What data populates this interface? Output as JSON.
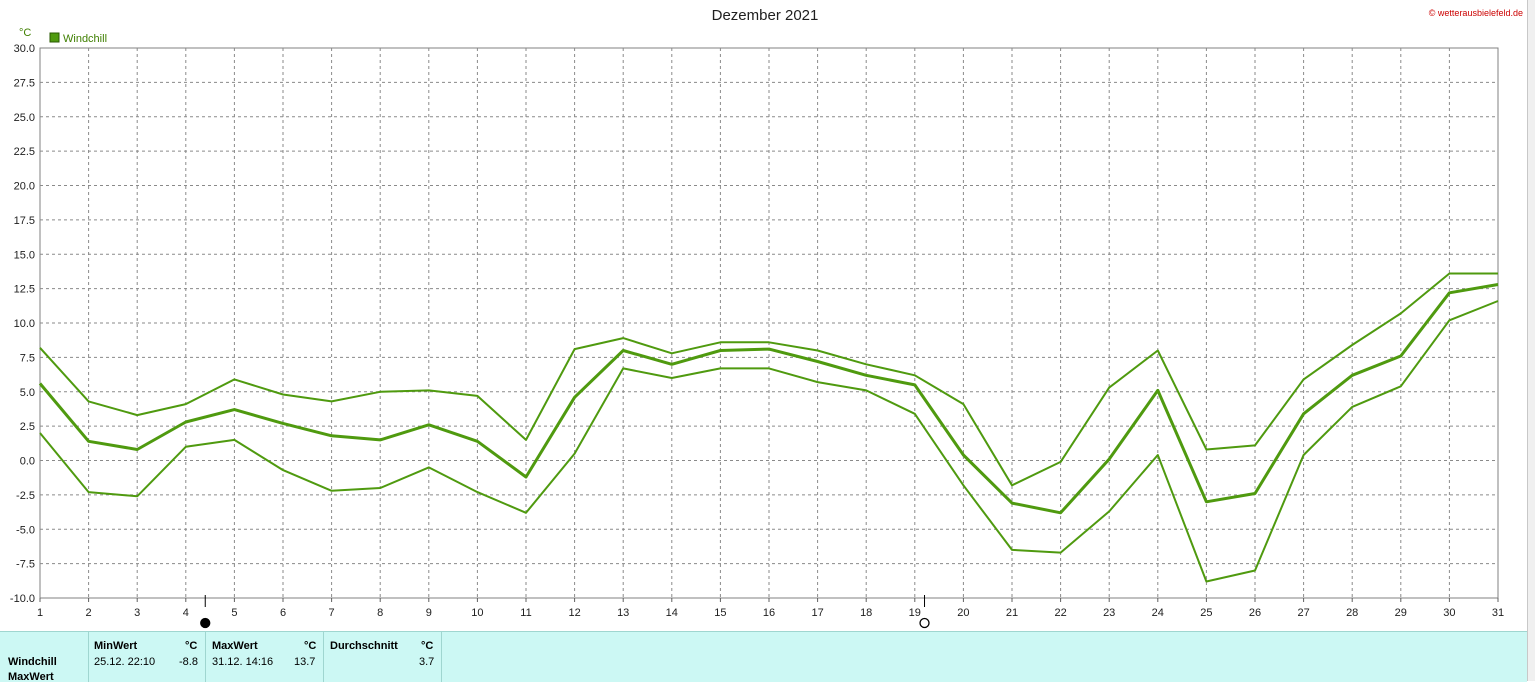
{
  "chart_data": {
    "type": "line",
    "title": "Dezember 2021",
    "y_unit": "°C",
    "copyright": "© wetterausbielefeld.de",
    "legend": [
      {
        "label": "Windchill",
        "color": "#4f9a0f"
      }
    ],
    "ylim": [
      -10,
      30
    ],
    "ytick_labels": [
      "-10.0",
      "-7.5",
      "-5.0",
      "-2.5",
      "0.0",
      "2.5",
      "5.0",
      "7.5",
      "10.0",
      "12.5",
      "15.0",
      "17.5",
      "20.0",
      "22.5",
      "25.0",
      "27.5",
      "30.0"
    ],
    "x": [
      1,
      2,
      3,
      4,
      5,
      6,
      7,
      8,
      9,
      10,
      11,
      12,
      13,
      14,
      15,
      16,
      17,
      18,
      19,
      20,
      21,
      22,
      23,
      24,
      25,
      26,
      27,
      28,
      29,
      30,
      31
    ],
    "grid": true,
    "moon_markers": [
      {
        "day": 4.4,
        "phase": "new-moon"
      },
      {
        "day": 19.2,
        "phase": "full-moon"
      }
    ],
    "series": [
      {
        "role": "max",
        "values": [
          8.2,
          4.3,
          3.3,
          4.1,
          5.9,
          4.8,
          4.3,
          5.0,
          5.1,
          4.7,
          1.5,
          8.1,
          8.9,
          7.8,
          8.6,
          8.6,
          8.0,
          7.0,
          6.2,
          4.1,
          -1.8,
          -0.1,
          5.3,
          8.0,
          0.8,
          1.1,
          5.9,
          8.4,
          10.7,
          13.6,
          13.6
        ]
      },
      {
        "role": "avg",
        "values": [
          5.6,
          1.4,
          0.8,
          2.8,
          3.7,
          2.7,
          1.8,
          1.5,
          2.6,
          1.4,
          -1.2,
          4.6,
          8.0,
          7.0,
          8.0,
          8.1,
          7.2,
          6.2,
          5.5,
          0.4,
          -3.1,
          -3.8,
          0.1,
          5.1,
          -3.0,
          -2.4,
          3.4,
          6.2,
          7.6,
          12.2,
          12.8
        ]
      },
      {
        "role": "min",
        "values": [
          2.0,
          -2.3,
          -2.6,
          1.0,
          1.5,
          -0.7,
          -2.2,
          -2.0,
          -0.5,
          -2.3,
          -3.8,
          0.5,
          6.7,
          6.0,
          6.7,
          6.7,
          5.7,
          5.1,
          3.4,
          -1.8,
          -6.5,
          -6.7,
          -3.7,
          0.4,
          -8.8,
          -8.0,
          0.4,
          3.9,
          5.4,
          10.2,
          11.6
        ]
      }
    ]
  },
  "stats": {
    "row_windchill": "Windchill",
    "row_maxwert": "MaxWert",
    "min_header": "MinWert",
    "min_unit": "°C",
    "min_time": "25.12.  22:10",
    "min_value": "-8.8",
    "max_header": "MaxWert",
    "max_unit": "°C",
    "max_time": "31.12.  14:16",
    "max_value": "13.7",
    "avg_header": "Durchschnitt",
    "avg_unit": "°C",
    "avg_value": "3.7"
  }
}
